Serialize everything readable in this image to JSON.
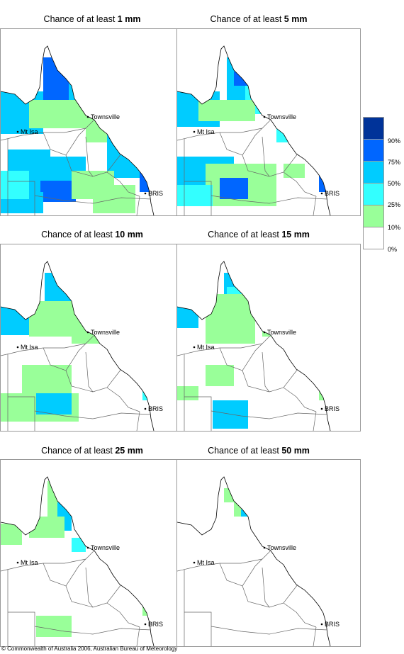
{
  "panels": [
    {
      "prefix": "Chance of at least ",
      "amount": "1 mm"
    },
    {
      "prefix": "Chance of at least ",
      "amount": "5 mm"
    },
    {
      "prefix": "Chance of at least ",
      "amount": "10 mm"
    },
    {
      "prefix": "Chance of at least ",
      "amount": "15 mm"
    },
    {
      "prefix": "Chance of at least ",
      "amount": "25 mm"
    },
    {
      "prefix": "Chance of at least ",
      "amount": "50 mm"
    }
  ],
  "places": {
    "townsville": "Townsville",
    "mt_isa": "Mt Isa",
    "brisbane": "BRIS"
  },
  "legend": {
    "labels": [
      "90%",
      "75%",
      "50%",
      "25%",
      "10%",
      "0%"
    ],
    "colors": [
      "#003399",
      "#0066ff",
      "#00ccff",
      "#33ffff",
      "#99ff99",
      "#ffffff"
    ]
  },
  "footer": "© Commonwealth of Australia 2006, Australian Bureau of Meteorology"
}
